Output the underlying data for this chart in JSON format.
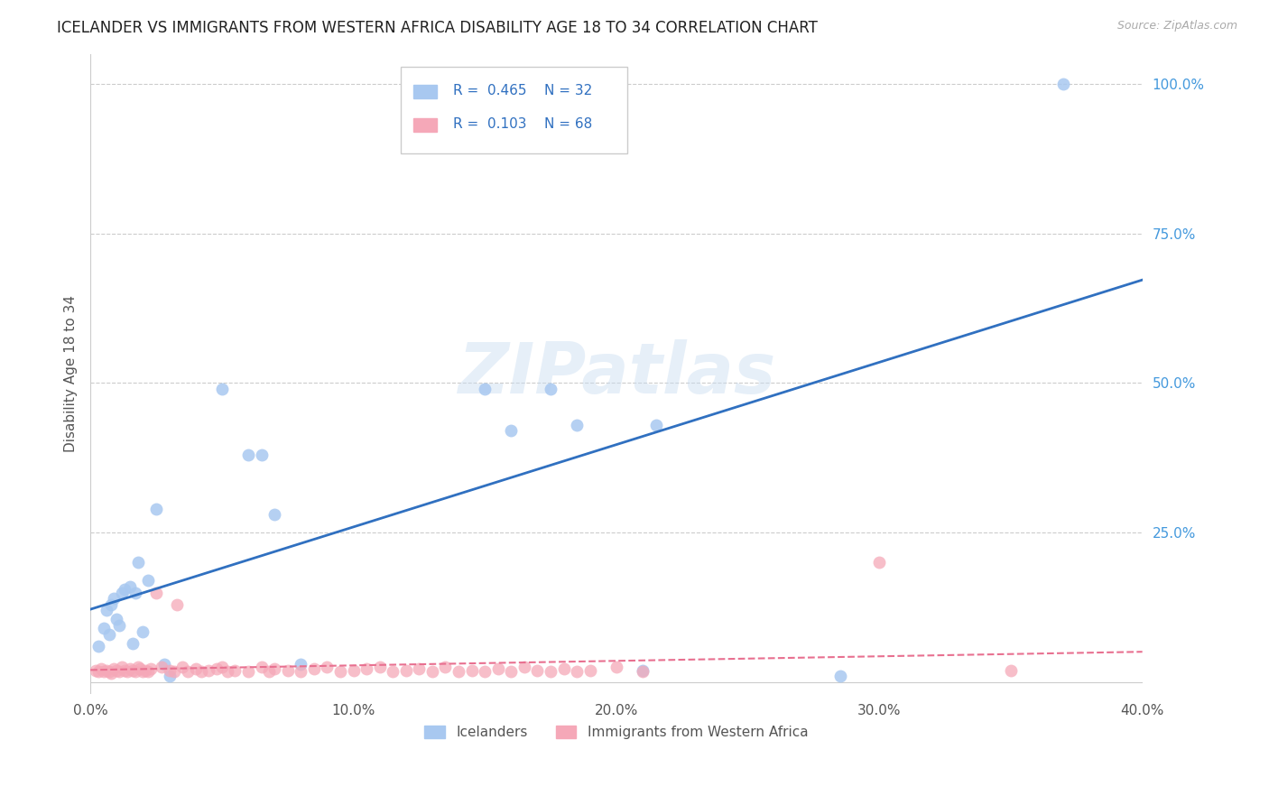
{
  "title": "ICELANDER VS IMMIGRANTS FROM WESTERN AFRICA DISABILITY AGE 18 TO 34 CORRELATION CHART",
  "source": "Source: ZipAtlas.com",
  "ylabel": "Disability Age 18 to 34",
  "xlim": [
    0.0,
    0.4
  ],
  "ylim": [
    -0.02,
    1.05
  ],
  "xtick_labels": [
    "0.0%",
    "10.0%",
    "20.0%",
    "30.0%",
    "40.0%"
  ],
  "xtick_values": [
    0.0,
    0.1,
    0.2,
    0.3,
    0.4
  ],
  "ytick_labels": [
    "25.0%",
    "50.0%",
    "75.0%",
    "100.0%"
  ],
  "ytick_values": [
    0.25,
    0.5,
    0.75,
    1.0
  ],
  "grid_color": "#cccccc",
  "background_color": "#ffffff",
  "icelanders_color": "#a8c8f0",
  "immigrants_color": "#f5a8b8",
  "icelanders_line_color": "#3070c0",
  "immigrants_line_color": "#e87090",
  "legend_label1": "Icelanders",
  "legend_label2": "Immigrants from Western Africa",
  "watermark": "ZIPatlas",
  "icelanders_x": [
    0.003,
    0.005,
    0.006,
    0.007,
    0.008,
    0.009,
    0.01,
    0.011,
    0.012,
    0.013,
    0.015,
    0.016,
    0.017,
    0.018,
    0.02,
    0.022,
    0.025,
    0.028,
    0.03,
    0.05,
    0.06,
    0.065,
    0.07,
    0.08,
    0.15,
    0.16,
    0.175,
    0.185,
    0.21,
    0.215,
    0.285,
    0.37
  ],
  "icelanders_y": [
    0.06,
    0.09,
    0.12,
    0.08,
    0.13,
    0.14,
    0.105,
    0.095,
    0.15,
    0.155,
    0.16,
    0.065,
    0.15,
    0.2,
    0.085,
    0.17,
    0.29,
    0.03,
    0.01,
    0.49,
    0.38,
    0.38,
    0.28,
    0.03,
    0.49,
    0.42,
    0.49,
    0.43,
    0.02,
    0.43,
    0.01,
    1.0
  ],
  "immigrants_x": [
    0.002,
    0.003,
    0.004,
    0.005,
    0.006,
    0.007,
    0.008,
    0.009,
    0.01,
    0.011,
    0.012,
    0.013,
    0.014,
    0.015,
    0.016,
    0.017,
    0.018,
    0.019,
    0.02,
    0.021,
    0.022,
    0.023,
    0.025,
    0.027,
    0.03,
    0.032,
    0.033,
    0.035,
    0.037,
    0.04,
    0.042,
    0.045,
    0.048,
    0.05,
    0.052,
    0.055,
    0.06,
    0.065,
    0.068,
    0.07,
    0.075,
    0.08,
    0.085,
    0.09,
    0.095,
    0.1,
    0.105,
    0.11,
    0.115,
    0.12,
    0.125,
    0.13,
    0.135,
    0.14,
    0.145,
    0.15,
    0.155,
    0.16,
    0.165,
    0.17,
    0.175,
    0.18,
    0.185,
    0.19,
    0.2,
    0.21,
    0.3,
    0.35
  ],
  "immigrants_y": [
    0.02,
    0.018,
    0.022,
    0.018,
    0.02,
    0.018,
    0.015,
    0.022,
    0.02,
    0.018,
    0.025,
    0.02,
    0.018,
    0.022,
    0.02,
    0.018,
    0.025,
    0.022,
    0.018,
    0.02,
    0.018,
    0.022,
    0.15,
    0.025,
    0.02,
    0.018,
    0.13,
    0.025,
    0.018,
    0.022,
    0.018,
    0.02,
    0.022,
    0.025,
    0.018,
    0.02,
    0.018,
    0.025,
    0.018,
    0.022,
    0.02,
    0.018,
    0.022,
    0.025,
    0.018,
    0.02,
    0.022,
    0.025,
    0.018,
    0.02,
    0.022,
    0.018,
    0.025,
    0.018,
    0.02,
    0.018,
    0.022,
    0.018,
    0.025,
    0.02,
    0.018,
    0.022,
    0.018,
    0.02,
    0.025,
    0.018,
    0.2,
    0.02
  ]
}
